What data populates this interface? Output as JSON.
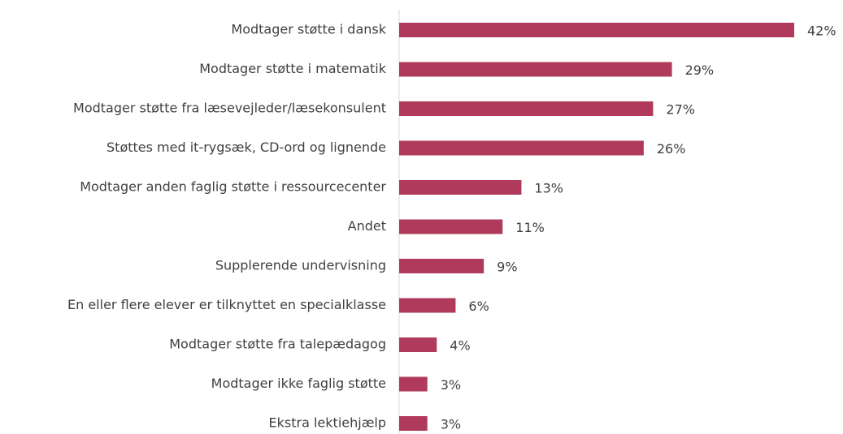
{
  "chart_data": {
    "type": "barh",
    "categories": [
      "Modtager støtte i dansk",
      "Modtager støtte i matematik",
      "Modtager støtte fra læsevejleder/læsekonsulent",
      "Støttes med it-rygsæk, CD-ord og lignende",
      "Modtager anden faglig støtte i ressourcecenter",
      "Andet",
      "Supplerende undervisning",
      "En eller flere elever er tilknyttet en specialklasse",
      "Modtager støtte fra talepædagog",
      "Modtager ikke faglig støtte",
      "Ekstra lektiehjælp"
    ],
    "values": [
      42,
      29,
      27,
      26,
      13,
      11,
      9,
      6,
      4,
      3,
      3
    ],
    "value_labels": [
      "42%",
      "29%",
      "27%",
      "26%",
      "13%",
      "11%",
      "9%",
      "6%",
      "4%",
      "3%",
      "3%"
    ],
    "color": "#b03a5b"
  }
}
